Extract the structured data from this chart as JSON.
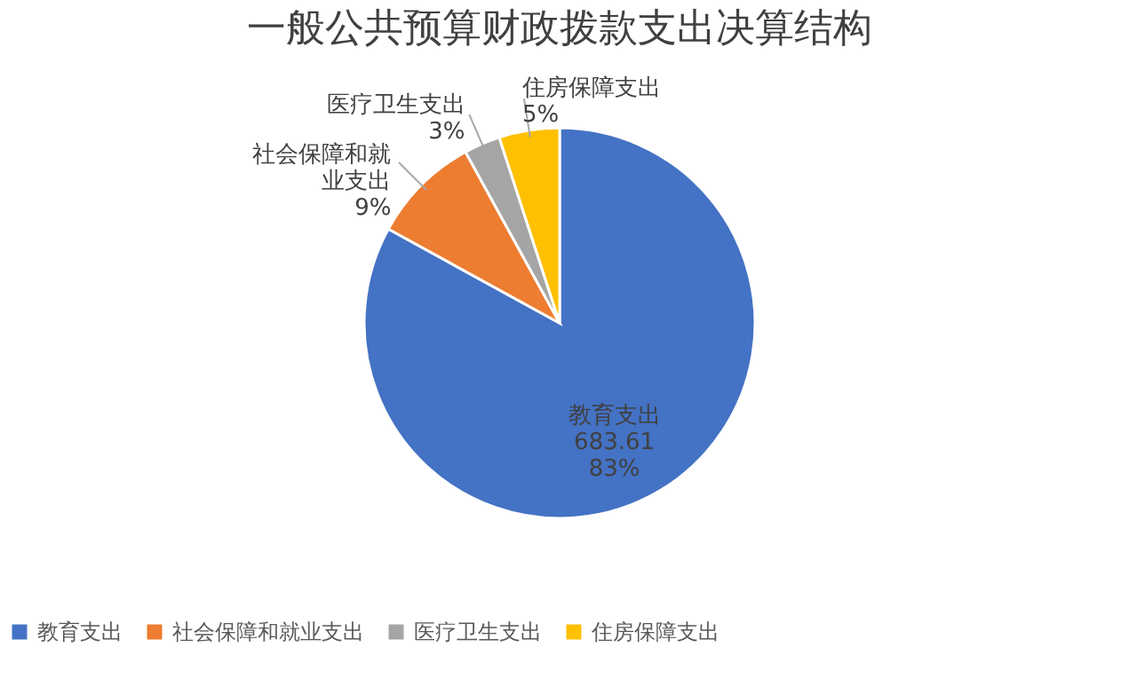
{
  "chart_data": {
    "type": "pie",
    "title": "一般公共预算财政拨款支出决算结构",
    "categories": [
      "教育支出",
      "社会保障和就业支出",
      "医疗卫生支出",
      "住房保障支出"
    ],
    "values": [
      83,
      9,
      3,
      5
    ],
    "value_labels": [
      "683.61\n83%",
      "9%",
      "3%",
      "5%"
    ],
    "colors": [
      "#4472c4",
      "#ed7d31",
      "#a5a5a5",
      "#ffc000"
    ],
    "legend": "bottom"
  }
}
